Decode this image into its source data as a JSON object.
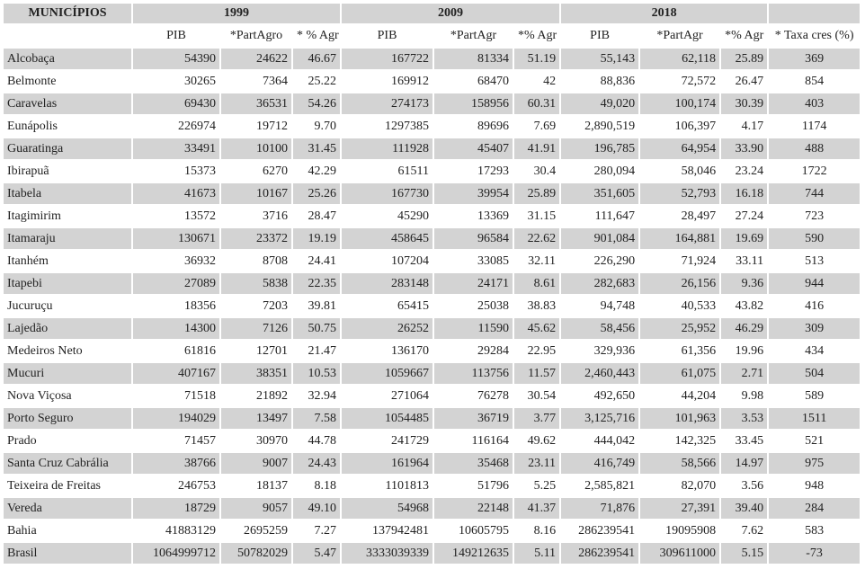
{
  "table": {
    "header_first": "MUNICÍPIOS",
    "years": [
      "1999",
      "2009",
      "2018"
    ],
    "subheaders": [
      "PIB",
      "*PartAgro",
      "* % Agr",
      "PIB",
      "*PartAgr",
      "*% Agr",
      "PIB",
      "*PartAgr",
      "*% Agr",
      "* Taxa cres (%)"
    ],
    "rows": [
      [
        "Alcobaça",
        "54390",
        "24622",
        "46.67",
        "167722",
        "81334",
        "51.19",
        "55,143",
        "62,118",
        "25.89",
        "369"
      ],
      [
        "Belmonte",
        "30265",
        "7364",
        "25.22",
        "169912",
        "68470",
        "42",
        "88,836",
        "72,572",
        "26.47",
        "854"
      ],
      [
        "Caravelas",
        "69430",
        "36531",
        "54.26",
        "274173",
        "158956",
        "60.31",
        "49,020",
        "100,174",
        "30.39",
        "403"
      ],
      [
        "Eunápolis",
        "226974",
        "19712",
        "9.70",
        "1297385",
        "89696",
        "7.69",
        "2,890,519",
        "106,397",
        "4.17",
        "1174"
      ],
      [
        "Guaratinga",
        "33491",
        "10100",
        "31.45",
        "111928",
        "45407",
        "41.91",
        "196,785",
        "64,954",
        "33.90",
        "488"
      ],
      [
        "Ibirapuã",
        "15373",
        "6270",
        "42.29",
        "61511",
        "17293",
        "30.4",
        "280,094",
        "58,046",
        "23.24",
        "1722"
      ],
      [
        "Itabela",
        "41673",
        "10167",
        "25.26",
        "167730",
        "39954",
        "25.89",
        "351,605",
        "52,793",
        "16.18",
        "744"
      ],
      [
        "Itagimirim",
        "13572",
        "3716",
        "28.47",
        "45290",
        "13369",
        "31.15",
        "111,647",
        "28,497",
        "27.24",
        "723"
      ],
      [
        "Itamaraju",
        "130671",
        "23372",
        "19.19",
        "458645",
        "96584",
        "22.62",
        "901,084",
        "164,881",
        "19.69",
        "590"
      ],
      [
        "Itanhém",
        "36932",
        "8708",
        "24.41",
        "107204",
        "33085",
        "32.11",
        "226,290",
        "71,924",
        "33.11",
        "513"
      ],
      [
        "Itapebi",
        "27089",
        "5838",
        "22.35",
        "283148",
        "24171",
        "8.61",
        "282,683",
        "26,156",
        "9.36",
        "944"
      ],
      [
        "Jucuruçu",
        "18356",
        "7203",
        "39.81",
        "65415",
        "25038",
        "38.83",
        "94,748",
        "40,533",
        "43.82",
        "416"
      ],
      [
        "Lajedão",
        "14300",
        "7126",
        "50.75",
        "26252",
        "11590",
        "45.62",
        "58,456",
        "25,952",
        "46.29",
        "309"
      ],
      [
        "Medeiros Neto",
        "61816",
        "12701",
        "21.47",
        "136170",
        "29284",
        "22.95",
        "329,936",
        "61,356",
        "19.96",
        "434"
      ],
      [
        "Mucuri",
        "407167",
        "38351",
        "10.53",
        "1059667",
        "113756",
        "11.57",
        "2,460,443",
        "61,075",
        "2.71",
        "504"
      ],
      [
        "Nova Viçosa",
        "71518",
        "21892",
        "32.94",
        "271064",
        "76278",
        "30.54",
        "492,650",
        "44,204",
        "9.98",
        "589"
      ],
      [
        "Porto Seguro",
        "194029",
        "13497",
        "7.58",
        "1054485",
        "36719",
        "3.77",
        "3,125,716",
        "101,963",
        "3.53",
        "1511"
      ],
      [
        "Prado",
        "71457",
        "30970",
        "44.78",
        "241729",
        "116164",
        "49.62",
        "444,042",
        "142,325",
        "33.45",
        "521"
      ],
      [
        "Santa Cruz Cabrália",
        "38766",
        "9007",
        "24.43",
        "161964",
        "35468",
        "23.11",
        "416,749",
        "58,566",
        "14.97",
        "975"
      ],
      [
        "Teixeira de Freitas",
        "246753",
        "18137",
        "8.18",
        "1101813",
        "51796",
        "5.25",
        "2,585,821",
        "82,070",
        "3.56",
        "948"
      ],
      [
        "Vereda",
        "18729",
        "9057",
        "49.10",
        "54968",
        "22148",
        "41.37",
        "71,876",
        "27,391",
        "39.40",
        "284"
      ],
      [
        "Bahia",
        "41883129",
        "2695259",
        "7.27",
        "137942481",
        "10605795",
        "8.16",
        "286239541",
        "19095908",
        "7.62",
        "583"
      ],
      [
        "Brasil",
        "1064999712",
        "50782029",
        "5.47",
        "3333039339",
        "149212635",
        "5.11",
        "286239541",
        "309611000",
        "5.15",
        "-73"
      ]
    ]
  }
}
